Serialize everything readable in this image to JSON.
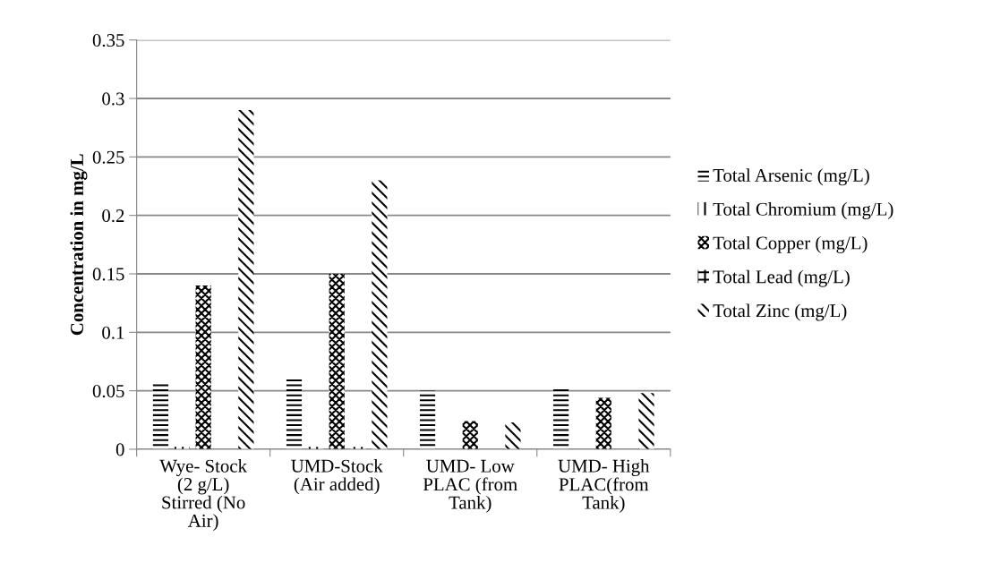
{
  "chart_data": {
    "type": "bar",
    "ylabel": "Concentration in mg/L",
    "categories": [
      "Wye- Stock (2 g/L) Stirred (No Air)",
      "UMD-Stock (Air added)",
      "UMD- Low PLAC (from Tank)",
      "UMD- High PLAC(from Tank)"
    ],
    "series": [
      {
        "name": "Total Arsenic (mg/L)",
        "color": "#000000",
        "values": [
          0.056,
          0.062,
          0.05,
          0.053
        ]
      },
      {
        "name": "Total Chromium (mg/L)",
        "color": "#000000",
        "values": [
          0.002,
          0.002,
          null,
          null
        ]
      },
      {
        "name": "Total Copper (mg/L)",
        "color": "#000000",
        "values": [
          0.14,
          0.15,
          0.024,
          0.044
        ]
      },
      {
        "name": "Total Lead (mg/L)",
        "color": "#000000",
        "values": [
          null,
          0.002,
          null,
          null
        ]
      },
      {
        "name": "Total Zinc (mg/L)",
        "color": "#000000",
        "values": [
          0.29,
          0.23,
          0.023,
          0.048
        ]
      }
    ],
    "ylim": [
      0,
      0.35
    ],
    "yticks": [
      {
        "value": 0,
        "label": "0"
      },
      0.05,
      0.1,
      0.15,
      0.2,
      0.25,
      0.3,
      0.35
    ],
    "grid": "y",
    "legend": "right"
  }
}
